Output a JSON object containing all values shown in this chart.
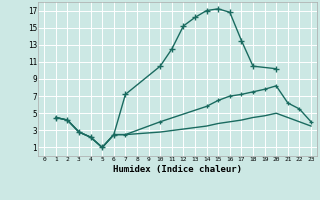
{
  "xlabel": "Humidex (Indice chaleur)",
  "bg_color": "#cce8e4",
  "line_color": "#1a6b60",
  "grid_color": "#ffffff",
  "line1_x": [
    1,
    2,
    3,
    4,
    5,
    6,
    7,
    10,
    11,
    12,
    13,
    14,
    15,
    16,
    17,
    18,
    20
  ],
  "line1_y": [
    4.5,
    4.2,
    2.8,
    2.2,
    1.0,
    2.5,
    7.2,
    10.5,
    12.5,
    15.2,
    16.2,
    17.0,
    17.2,
    16.8,
    13.5,
    10.5,
    10.2
  ],
  "line2_x": [
    1,
    2,
    3,
    4,
    5,
    6,
    7,
    10,
    14,
    15,
    16,
    17,
    18,
    19,
    20,
    21,
    22,
    23
  ],
  "line2_y": [
    4.5,
    4.2,
    2.8,
    2.2,
    1.0,
    2.5,
    2.5,
    4.0,
    5.8,
    6.5,
    7.0,
    7.2,
    7.5,
    7.8,
    8.2,
    6.2,
    5.5,
    4.0
  ],
  "line3_x": [
    1,
    2,
    3,
    4,
    5,
    6,
    7,
    10,
    14,
    15,
    16,
    17,
    18,
    19,
    20,
    21,
    22,
    23
  ],
  "line3_y": [
    4.5,
    4.2,
    2.8,
    2.2,
    1.0,
    2.5,
    2.5,
    2.8,
    3.5,
    3.8,
    4.0,
    4.2,
    4.5,
    4.7,
    5.0,
    4.5,
    4.0,
    3.5
  ],
  "xlim": [
    -0.5,
    23.5
  ],
  "ylim": [
    0,
    18
  ],
  "xticks": [
    0,
    1,
    2,
    3,
    4,
    5,
    6,
    7,
    8,
    9,
    10,
    11,
    12,
    13,
    14,
    15,
    16,
    17,
    18,
    19,
    20,
    21,
    22,
    23
  ],
  "yticks": [
    1,
    3,
    5,
    7,
    9,
    11,
    13,
    15,
    17
  ]
}
